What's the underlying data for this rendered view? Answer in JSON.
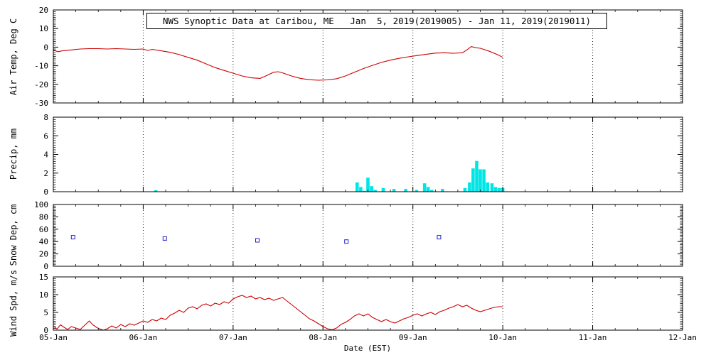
{
  "title": "NWS Synoptic Data at Caribou, ME   Jan  5, 2019(2019005) - Jan 11, 2019(2019011)",
  "x_axis": {
    "label": "Date (EST)",
    "ticks": [
      "05-Jan",
      "06-Jan",
      "07-Jan",
      "08-Jan",
      "09-Jan",
      "10-Jan",
      "11-Jan",
      "12-Jan"
    ],
    "range": [
      5,
      12
    ]
  },
  "colors": {
    "axis": "#000000",
    "temp_line": "#cc0000",
    "precip_bar": "#00e5e5",
    "snow_marker": "#2222cc",
    "wind_line": "#cc0000"
  },
  "chart_data": [
    {
      "type": "line",
      "name": "air-temp",
      "ylabel": "Air Temp, Deg C",
      "ylim": [
        -30,
        20
      ],
      "yticks": [
        -30,
        -20,
        -10,
        0,
        10,
        20
      ],
      "color": "#cc0000",
      "points": [
        [
          5.0,
          -1.5
        ],
        [
          5.05,
          -2.5
        ],
        [
          5.1,
          -2.0
        ],
        [
          5.2,
          -1.5
        ],
        [
          5.3,
          -1.0
        ],
        [
          5.4,
          -0.8
        ],
        [
          5.5,
          -0.8
        ],
        [
          5.6,
          -1.0
        ],
        [
          5.7,
          -0.8
        ],
        [
          5.8,
          -1.0
        ],
        [
          5.9,
          -1.2
        ],
        [
          6.0,
          -1.0
        ],
        [
          6.05,
          -1.8
        ],
        [
          6.1,
          -1.2
        ],
        [
          6.2,
          -2.0
        ],
        [
          6.3,
          -2.8
        ],
        [
          6.4,
          -4.0
        ],
        [
          6.5,
          -5.5
        ],
        [
          6.6,
          -7.0
        ],
        [
          6.7,
          -9.0
        ],
        [
          6.8,
          -11.0
        ],
        [
          6.9,
          -12.5
        ],
        [
          7.0,
          -14.0
        ],
        [
          7.1,
          -15.5
        ],
        [
          7.2,
          -16.5
        ],
        [
          7.3,
          -16.8
        ],
        [
          7.35,
          -15.8
        ],
        [
          7.45,
          -13.5
        ],
        [
          7.5,
          -13.2
        ],
        [
          7.55,
          -13.8
        ],
        [
          7.65,
          -15.5
        ],
        [
          7.75,
          -16.8
        ],
        [
          7.85,
          -17.5
        ],
        [
          7.95,
          -17.8
        ],
        [
          8.05,
          -17.6
        ],
        [
          8.15,
          -17.0
        ],
        [
          8.25,
          -15.5
        ],
        [
          8.35,
          -13.5
        ],
        [
          8.45,
          -11.5
        ],
        [
          8.55,
          -9.8
        ],
        [
          8.65,
          -8.2
        ],
        [
          8.75,
          -7.0
        ],
        [
          8.85,
          -6.0
        ],
        [
          8.95,
          -5.2
        ],
        [
          9.05,
          -4.5
        ],
        [
          9.15,
          -3.8
        ],
        [
          9.25,
          -3.2
        ],
        [
          9.35,
          -3.0
        ],
        [
          9.45,
          -3.3
        ],
        [
          9.55,
          -3.0
        ],
        [
          9.6,
          -1.5
        ],
        [
          9.65,
          0.3
        ],
        [
          9.7,
          -0.3
        ],
        [
          9.75,
          -0.6
        ],
        [
          9.85,
          -2.2
        ],
        [
          9.95,
          -4.2
        ],
        [
          10.0,
          -5.5
        ]
      ]
    },
    {
      "type": "bar",
      "name": "precip",
      "ylabel": "Precip, mm",
      "ylim": [
        0,
        8
      ],
      "yticks": [
        0,
        2,
        4,
        6,
        8
      ],
      "color": "#00e5e5",
      "points": [
        [
          6.14,
          0.15
        ],
        [
          8.38,
          1.0
        ],
        [
          8.42,
          0.5
        ],
        [
          8.46,
          0.1
        ],
        [
          8.5,
          1.5
        ],
        [
          8.54,
          0.6
        ],
        [
          8.58,
          0.2
        ],
        [
          8.67,
          0.4
        ],
        [
          8.79,
          0.3
        ],
        [
          8.92,
          0.3
        ],
        [
          9.04,
          0.2
        ],
        [
          9.13,
          0.9
        ],
        [
          9.17,
          0.5
        ],
        [
          9.21,
          0.2
        ],
        [
          9.33,
          0.3
        ],
        [
          9.58,
          0.4
        ],
        [
          9.63,
          1.0
        ],
        [
          9.67,
          2.5
        ],
        [
          9.71,
          3.3
        ],
        [
          9.75,
          2.4
        ],
        [
          9.79,
          2.4
        ],
        [
          9.83,
          1.0
        ],
        [
          9.88,
          0.9
        ],
        [
          9.92,
          0.5
        ],
        [
          9.96,
          0.4
        ],
        [
          10.0,
          0.4
        ]
      ]
    },
    {
      "type": "scatter",
      "name": "snow-depth",
      "ylabel": "Snow Dep, cm",
      "ylim": [
        0,
        100
      ],
      "yticks": [
        0,
        20,
        40,
        60,
        80,
        100
      ],
      "color": "#2222cc",
      "points": [
        [
          5.22,
          47
        ],
        [
          6.24,
          45
        ],
        [
          7.27,
          42
        ],
        [
          8.26,
          40
        ],
        [
          9.29,
          47
        ]
      ]
    },
    {
      "type": "line",
      "name": "wind-speed",
      "ylabel": "Wind Spd, m/s",
      "ylim": [
        0,
        15
      ],
      "yticks": [
        0,
        5,
        10,
        15
      ],
      "color": "#cc0000",
      "points": [
        [
          5.0,
          1.2
        ],
        [
          5.04,
          0.3
        ],
        [
          5.08,
          1.5
        ],
        [
          5.12,
          0.8
        ],
        [
          5.16,
          0.2
        ],
        [
          5.2,
          1.0
        ],
        [
          5.25,
          0.6
        ],
        [
          5.3,
          0.2
        ],
        [
          5.35,
          1.4
        ],
        [
          5.4,
          2.6
        ],
        [
          5.44,
          1.5
        ],
        [
          5.48,
          0.8
        ],
        [
          5.52,
          0.3
        ],
        [
          5.56,
          0.0
        ],
        [
          5.6,
          0.4
        ],
        [
          5.65,
          1.2
        ],
        [
          5.7,
          0.6
        ],
        [
          5.75,
          1.6
        ],
        [
          5.8,
          1.0
        ],
        [
          5.85,
          1.8
        ],
        [
          5.9,
          1.4
        ],
        [
          5.95,
          2.0
        ],
        [
          6.0,
          2.6
        ],
        [
          6.05,
          2.2
        ],
        [
          6.1,
          3.0
        ],
        [
          6.15,
          2.6
        ],
        [
          6.2,
          3.4
        ],
        [
          6.25,
          3.0
        ],
        [
          6.3,
          4.2
        ],
        [
          6.35,
          4.8
        ],
        [
          6.4,
          5.6
        ],
        [
          6.45,
          5.0
        ],
        [
          6.5,
          6.2
        ],
        [
          6.55,
          6.6
        ],
        [
          6.6,
          6.0
        ],
        [
          6.65,
          7.0
        ],
        [
          6.7,
          7.4
        ],
        [
          6.75,
          6.8
        ],
        [
          6.8,
          7.6
        ],
        [
          6.85,
          7.2
        ],
        [
          6.9,
          8.0
        ],
        [
          6.95,
          7.6
        ],
        [
          7.0,
          8.8
        ],
        [
          7.05,
          9.4
        ],
        [
          7.1,
          9.8
        ],
        [
          7.15,
          9.2
        ],
        [
          7.2,
          9.6
        ],
        [
          7.25,
          8.8
        ],
        [
          7.3,
          9.2
        ],
        [
          7.35,
          8.6
        ],
        [
          7.4,
          9.0
        ],
        [
          7.45,
          8.4
        ],
        [
          7.5,
          8.8
        ],
        [
          7.55,
          9.2
        ],
        [
          7.6,
          8.2
        ],
        [
          7.65,
          7.2
        ],
        [
          7.7,
          6.2
        ],
        [
          7.75,
          5.2
        ],
        [
          7.8,
          4.2
        ],
        [
          7.85,
          3.2
        ],
        [
          7.9,
          2.6
        ],
        [
          7.95,
          1.8
        ],
        [
          8.0,
          1.0
        ],
        [
          8.05,
          0.4
        ],
        [
          8.1,
          0.1
        ],
        [
          8.15,
          0.6
        ],
        [
          8.2,
          1.6
        ],
        [
          8.25,
          2.2
        ],
        [
          8.3,
          3.0
        ],
        [
          8.35,
          4.0
        ],
        [
          8.4,
          4.6
        ],
        [
          8.45,
          4.0
        ],
        [
          8.5,
          4.6
        ],
        [
          8.55,
          3.6
        ],
        [
          8.6,
          3.0
        ],
        [
          8.65,
          2.4
        ],
        [
          8.7,
          3.0
        ],
        [
          8.75,
          2.4
        ],
        [
          8.8,
          2.0
        ],
        [
          8.85,
          2.6
        ],
        [
          8.9,
          3.2
        ],
        [
          8.95,
          3.6
        ],
        [
          9.0,
          4.2
        ],
        [
          9.05,
          4.6
        ],
        [
          9.1,
          4.0
        ],
        [
          9.15,
          4.6
        ],
        [
          9.2,
          5.0
        ],
        [
          9.25,
          4.4
        ],
        [
          9.3,
          5.2
        ],
        [
          9.35,
          5.6
        ],
        [
          9.4,
          6.2
        ],
        [
          9.45,
          6.6
        ],
        [
          9.5,
          7.2
        ],
        [
          9.55,
          6.6
        ],
        [
          9.6,
          7.0
        ],
        [
          9.65,
          6.2
        ],
        [
          9.7,
          5.6
        ],
        [
          9.75,
          5.2
        ],
        [
          9.8,
          5.6
        ],
        [
          9.85,
          6.0
        ],
        [
          9.9,
          6.4
        ],
        [
          9.95,
          6.6
        ],
        [
          10.0,
          6.6
        ]
      ]
    }
  ]
}
